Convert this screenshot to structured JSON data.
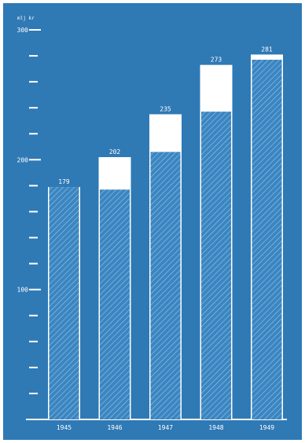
{
  "chart_data": {
    "type": "bar",
    "unit_label": "mlj kr",
    "categories": [
      "1945",
      "1946",
      "1947",
      "1948",
      "1949"
    ],
    "series": [
      {
        "values": [
          179,
          202,
          235,
          273,
          281
        ]
      },
      {
        "values": [
          179,
          177,
          206,
          237,
          277
        ]
      }
    ],
    "ylim": [
      0,
      300
    ],
    "y_ticks": [
      0,
      20,
      40,
      60,
      80,
      100,
      120,
      140,
      160,
      180,
      200,
      220,
      240,
      260,
      280,
      300
    ],
    "y_tick_labels": {
      "100": "100",
      "200": "200",
      "300": "300"
    },
    "grid": false,
    "colors": {
      "background": "#2f79b5",
      "bar_total": "#ffffff",
      "hatch": "#ffffff",
      "frame": "#ffffff"
    }
  }
}
